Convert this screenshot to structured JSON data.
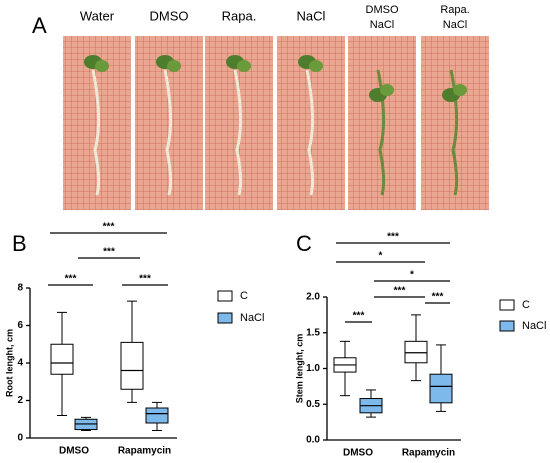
{
  "photo_panel": {
    "label": "A",
    "captions": [
      [
        "Water"
      ],
      [
        "DMSO"
      ],
      [
        "Rapa."
      ],
      [
        "NaCl"
      ],
      [
        "DMSO",
        "NaCl"
      ],
      [
        "Rapa.",
        "NaCl"
      ]
    ]
  },
  "chart_data": [
    {
      "type": "box",
      "panel_label": "B",
      "y_label": "Root lenght, cm",
      "categories": [
        "DMSO",
        "Rapamycin"
      ],
      "series": [
        {
          "name": "C",
          "color": "#ffffff",
          "values": [
            {
              "min": 1.2,
              "q1": 3.4,
              "median": 4.0,
              "q3": 5.0,
              "max": 6.7
            },
            {
              "min": 1.9,
              "q1": 2.6,
              "median": 3.6,
              "q3": 5.1,
              "max": 7.3
            }
          ]
        },
        {
          "name": "NaCl",
          "color": "#7db9ea",
          "values": [
            {
              "min": 0.4,
              "q1": 0.45,
              "median": 0.75,
              "q3": 1.0,
              "max": 1.1
            },
            {
              "min": 0.4,
              "q1": 0.8,
              "median": 1.3,
              "q3": 1.6,
              "max": 1.9
            }
          ]
        }
      ],
      "ylim": [
        0,
        8
      ],
      "yticks": [
        0,
        2,
        4,
        6,
        8
      ],
      "significance": [
        "***",
        "***",
        "***",
        "***"
      ]
    },
    {
      "type": "box",
      "panel_label": "C",
      "y_label": "Stem lenght, cm",
      "categories": [
        "DMSO",
        "Rapamycin"
      ],
      "series": [
        {
          "name": "C",
          "color": "#ffffff",
          "values": [
            {
              "min": 0.62,
              "q1": 0.95,
              "median": 1.05,
              "q3": 1.15,
              "max": 1.38
            },
            {
              "min": 0.83,
              "q1": 1.08,
              "median": 1.22,
              "q3": 1.38,
              "max": 1.75
            }
          ]
        },
        {
          "name": "NaCl",
          "color": "#7db9ea",
          "values": [
            {
              "min": 0.32,
              "q1": 0.38,
              "median": 0.48,
              "q3": 0.58,
              "max": 0.7
            },
            {
              "min": 0.4,
              "q1": 0.52,
              "median": 0.75,
              "q3": 0.92,
              "max": 1.33
            }
          ]
        }
      ],
      "ylim": [
        0,
        2
      ],
      "yticks": [
        {
          "value": 0,
          "label": "0.0"
        },
        0.5,
        {
          "value": 1,
          "label": "1.0"
        },
        1.5,
        {
          "value": 2,
          "label": "2.0"
        }
      ],
      "significance": [
        "***",
        "*",
        "*",
        "***",
        "***",
        "***"
      ]
    }
  ]
}
